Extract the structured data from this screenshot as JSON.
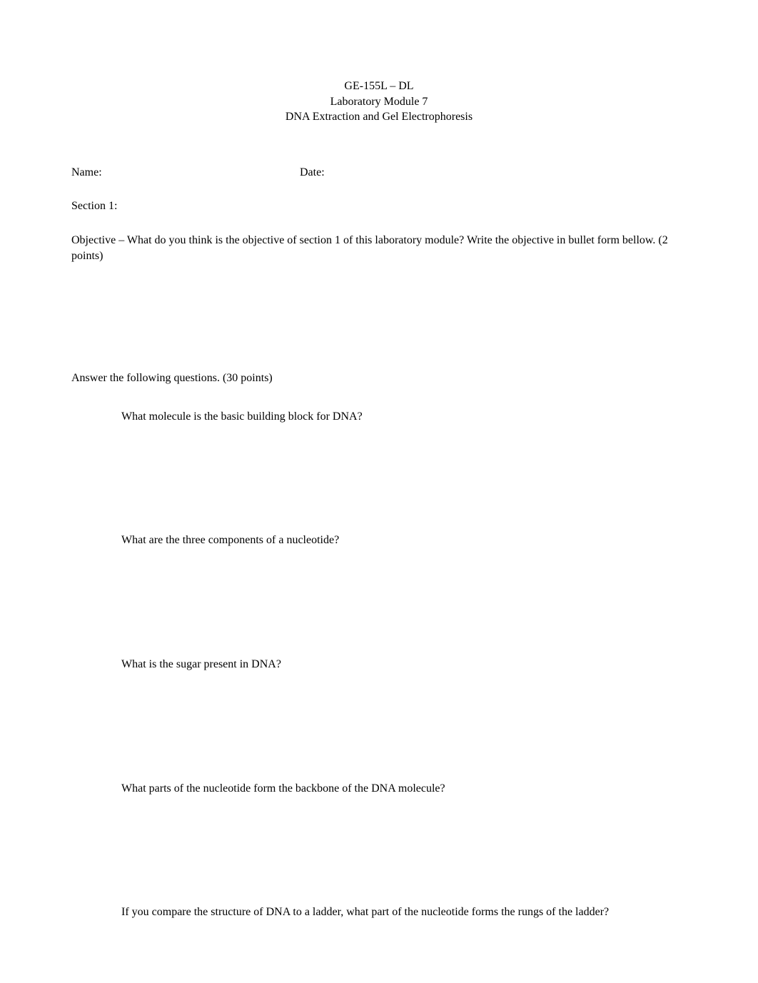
{
  "page": {
    "background_color": "#ffffff",
    "text_color": "#000000",
    "font_family": "Times New Roman",
    "base_font_size_pt": 12
  },
  "header": {
    "line1": "GE-155L – DL",
    "line2": "Laboratory Module 7",
    "line3": "DNA Extraction and Gel Electrophoresis"
  },
  "name_date": {
    "name_label": "Name:",
    "date_label": "Date:"
  },
  "section": {
    "heading": "Section 1:"
  },
  "objective": {
    "text": "Objective – What do you think is the objective of section 1 of this laboratory module?   Write the objective in bullet form bellow. (2 points)"
  },
  "questions_intro": {
    "text": "Answer the following questions. (30 points)"
  },
  "bullet_glyph": "",
  "questions": [
    {
      "text": "What molecule is the basic building block for DNA?"
    },
    {
      "text": "What are the three components of a nucleotide?"
    },
    {
      "text": "What is the sugar present in DNA?"
    },
    {
      "text": "What parts of the nucleotide form the backbone of the DNA molecule?"
    },
    {
      "text": "If you compare the structure of DNA to a ladder, what part of the nucleotide forms the rungs of the ladder?"
    }
  ]
}
